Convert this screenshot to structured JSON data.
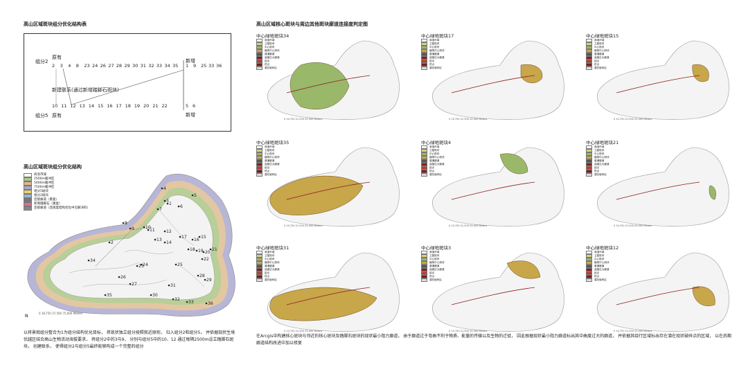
{
  "left": {
    "table_title": "高山区域斑块组分优化结构表",
    "group2_label": "组分2",
    "group5_label": "组分5",
    "existing_top": "原有",
    "existing_bottom": "原有",
    "new_right_top": "新增",
    "new_right_bottom": "新增",
    "new_link": "新建联系(通过新增踏脚石斑块)",
    "group2_nums": [
      "2",
      "3",
      "4",
      "8",
      "23",
      "24",
      "26",
      "27",
      "28",
      "29",
      "30",
      "31",
      "32",
      "33",
      "34",
      "35"
    ],
    "group2_new": [
      "1",
      "9",
      "25",
      "33",
      "36"
    ],
    "group5_nums": [
      "10",
      "11",
      "12",
      "13",
      "14",
      "15",
      "16",
      "17",
      "18",
      "19",
      "20",
      "21",
      "22"
    ],
    "group5_new": [
      "5",
      "6"
    ],
    "map_title": "高山区域斑块组分优化结构",
    "legend": [
      {
        "label": "商洛市域",
        "color": "#ffffff"
      },
      {
        "label": "2500m缓冲区",
        "color": "#a9c98a"
      },
      {
        "label": "5000m缓冲区",
        "color": "#e2b98a"
      },
      {
        "label": "7500m缓冲区",
        "color": "#a9a9cf"
      },
      {
        "label": "组分5斑块",
        "color": "#e8d36a"
      },
      {
        "label": "组分2斑块",
        "color": "#9cb6d6"
      },
      {
        "label": "连接廊道（重复）",
        "color": "#777777"
      },
      {
        "label": "新增踏脚石（重复）",
        "color": "#e06a9a"
      },
      {
        "label": "连接廊道（连接度结构优化中已解决的）",
        "color": "#888888"
      }
    ],
    "map_labels": [
      "4",
      "3",
      "5",
      "1",
      "6",
      "2",
      "7",
      "8",
      "9",
      "10",
      "11",
      "12",
      "13",
      "14",
      "15",
      "16",
      "17",
      "18",
      "19",
      "20",
      "21",
      "22",
      "23",
      "24",
      "25",
      "26",
      "27",
      "28",
      "29",
      "30",
      "31",
      "32",
      "33",
      "34",
      "35",
      "36"
    ],
    "scale_text": "0     18,750    37,500          75,000 Meters",
    "north": "N",
    "paragraph": "以将景观组分整合为1为组分结构优化目标， 将现状独立组分按照就近原则， 归入组分2和组分5， 并依据现状生境优越区结合高山生物活动海拔要求， 将组分2中的3与9， 分别与组分5中的10、12 通过每隔2500m设立踏脚石斑块， 创建联系， 使得组分2与组分5最终能够构成一个完整的组分"
  },
  "right": {
    "title": "高山区域核心斑块与周边其他斑块廊道连接度判定图",
    "panels": [
      {
        "title": "中心绿地斑块34"
      },
      {
        "title": "中心绿地斑块17"
      },
      {
        "title": "中心绿地斑块15"
      },
      {
        "title": "中心绿地斑块35"
      },
      {
        "title": "中心绿地斑块4"
      },
      {
        "title": "中心绿地斑块21"
      },
      {
        "title": "中心绿地斑块31"
      },
      {
        "title": "中心绿地斑块3"
      },
      {
        "title": "中心绿地斑块12"
      }
    ],
    "panel_legend": [
      "商洛市域",
      "卫星斑块",
      "中心斑块",
      "植物中心斑块",
      "普通廊道",
      "曲度过大廊道",
      "起点",
      "终点",
      "潜在破碎区"
    ],
    "panel_scale": "0  10,750  21,500        43,000 Meters",
    "paragraph": "在Arcgis中构建核心斑块与邻近的核心斑块及踏脚石斑块的现状最小阻力廊道， 由于廊道过于弯曲不利于物质、能量的传输以及生物的迁徙， 因此根据现状最小阻力廊道标出其中曲度过大的廊道， 并依据其绕行区域标出存在潜在现状破碎点的区域， 以在后期廊道结构改进中加以修复"
  }
}
